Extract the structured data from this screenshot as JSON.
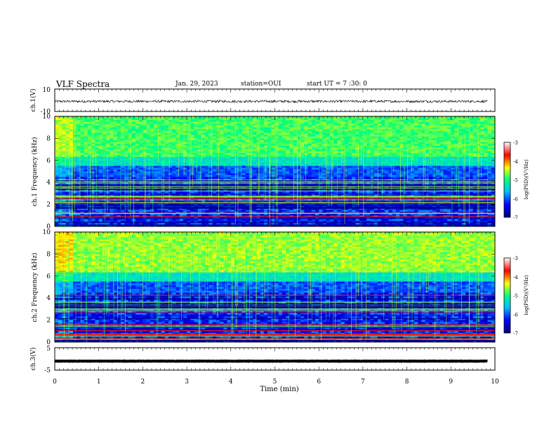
{
  "header": {
    "title": "VLF Spectra",
    "date": "Jan. 29, 2023",
    "station": "station=OUI",
    "start_ut": "start UT = 7 :30: 0"
  },
  "chart_data": [
    {
      "type": "line",
      "panel": "ch1-waveform",
      "ylabel": "ch.1(V)",
      "ylim": [
        -10,
        10
      ],
      "yticks": [
        "10",
        "-10"
      ],
      "xlim": [
        0,
        10
      ],
      "data_extent_min": [
        0,
        9.83
      ],
      "signal": "noise waveform centred near -1 V, about ±1 V wide"
    },
    {
      "type": "heatmap",
      "panel": "ch1-spectrogram",
      "ylabel": "ch.1 Frequency (kHz)",
      "ylim": [
        0,
        10
      ],
      "yticks": [
        "0",
        "2",
        "4",
        "6",
        "8",
        "10"
      ],
      "xlim": [
        0,
        10
      ],
      "colorbar": {
        "label": "log(PSD)(V²/Hz)",
        "range": [
          -7,
          -3
        ],
        "ticks": [
          "-3",
          "-4",
          "-5",
          "-6",
          "-7"
        ],
        "colors": [
          "#000080",
          "#0000ff",
          "#00bfff",
          "#00ff80",
          "#ffff00",
          "#ff0000",
          "#ffffff"
        ]
      }
    },
    {
      "type": "heatmap",
      "panel": "ch2-spectrogram",
      "ylabel": "ch.2 Frequency (kHz)",
      "ylim": [
        0,
        10
      ],
      "yticks": [
        "0",
        "2",
        "4",
        "6",
        "8",
        "10"
      ],
      "xlim": [
        0,
        10
      ],
      "colorbar": {
        "label": "log(PSD)(V²/Hz)",
        "range": [
          -7,
          -3
        ],
        "ticks": [
          "-3",
          "-4",
          "-5",
          "-6",
          "-7"
        ],
        "colors": [
          "#000080",
          "#0000ff",
          "#00bfff",
          "#00ff80",
          "#ffff00",
          "#ff0000",
          "#ffffff"
        ]
      }
    },
    {
      "type": "line",
      "panel": "ch3-waveform",
      "ylabel": "ch.3(V)",
      "ylim": [
        -5,
        5
      ],
      "yticks": [
        "5",
        "-5"
      ],
      "xlim": [
        0,
        10
      ],
      "data_extent_min": [
        0,
        9.83
      ],
      "signal": "flat thick trace near -1 V"
    }
  ],
  "xaxis": {
    "label": "Time (min)",
    "ticks": [
      "0",
      "1",
      "2",
      "3",
      "4",
      "5",
      "6",
      "7",
      "8",
      "9",
      "10"
    ]
  }
}
